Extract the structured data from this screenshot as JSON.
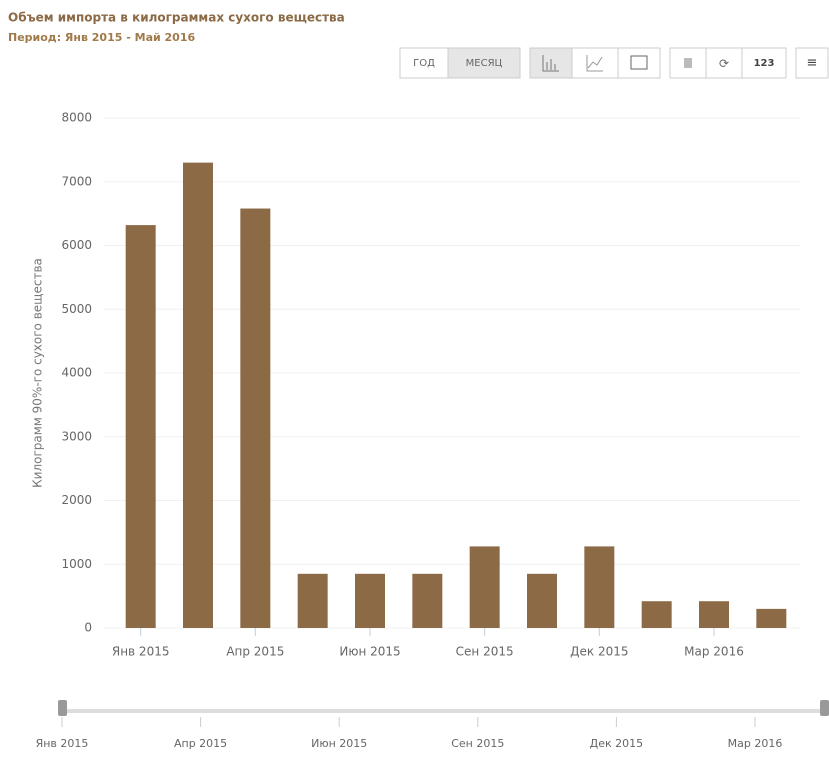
{
  "chart_data": {
    "type": "bar",
    "title": "Объем импорта в килограммах сухого вещества",
    "subtitle": "Период: Янв 2015 - Май 2016",
    "y_label": "Килограмм 90%-го сухого вещества",
    "categories": [
      "Янв 2015",
      null,
      "Апр 2015",
      null,
      "Июн 2015",
      null,
      "Сен 2015",
      null,
      "Дек 2015",
      null,
      "Мар 2016",
      null
    ],
    "values": [
      6320,
      7300,
      6580,
      850,
      850,
      850,
      1280,
      850,
      1280,
      420,
      420,
      300
    ],
    "color": "#8b6a45",
    "ylim": [
      0,
      8000
    ],
    "yticks": [
      0,
      1000,
      2000,
      3000,
      4000,
      5000,
      6000,
      7000,
      8000
    ],
    "grid": true
  },
  "toolbar": [
    "ГОД",
    "МЕСЯЦ",
    "123",
    "≡"
  ]
}
